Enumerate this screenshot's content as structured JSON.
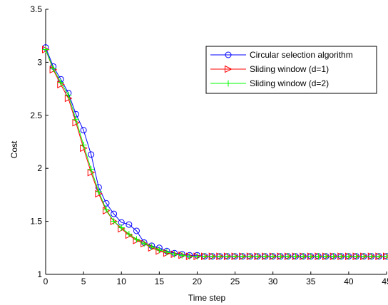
{
  "chart_data": {
    "type": "line",
    "xlabel": "Time step",
    "ylabel": "Cost",
    "xlim": [
      0,
      45
    ],
    "ylim": [
      1,
      3.5
    ],
    "xticks": [
      0,
      5,
      10,
      15,
      20,
      25,
      30,
      35,
      40,
      45
    ],
    "yticks": [
      1,
      1.5,
      2,
      2.5,
      3,
      3.5
    ],
    "xtick_labels": [
      "0",
      "5",
      "10",
      "15",
      "20",
      "25",
      "30",
      "35",
      "40",
      "45"
    ],
    "ytick_labels": [
      "1",
      "1.5",
      "2",
      "2.5",
      "3",
      "3.5"
    ],
    "legend_position": "top-right",
    "grid": false,
    "x": [
      0,
      1,
      2,
      3,
      4,
      5,
      6,
      7,
      8,
      9,
      10,
      11,
      12,
      13,
      14,
      15,
      16,
      17,
      18,
      19,
      20,
      21,
      22,
      23,
      24,
      25,
      26,
      27,
      28,
      29,
      30,
      31,
      32,
      33,
      34,
      35,
      36,
      37,
      38,
      39,
      40,
      41,
      42,
      43,
      44,
      45
    ],
    "series": [
      {
        "name": "Circular selection algorithm",
        "color": "#0000ff",
        "marker": "circle",
        "values": [
          3.14,
          2.96,
          2.84,
          2.71,
          2.51,
          2.36,
          2.13,
          1.82,
          1.67,
          1.57,
          1.49,
          1.47,
          1.41,
          1.3,
          1.27,
          1.25,
          1.22,
          1.2,
          1.19,
          1.18,
          1.18,
          1.17,
          1.17,
          1.17,
          1.17,
          1.17,
          1.17,
          1.17,
          1.17,
          1.17,
          1.17,
          1.17,
          1.17,
          1.17,
          1.17,
          1.17,
          1.17,
          1.17,
          1.17,
          1.17,
          1.17,
          1.17,
          1.17,
          1.17,
          1.17,
          1.17
        ]
      },
      {
        "name": "Sliding window (d=1)",
        "color": "#ff0000",
        "marker": "triangle-right",
        "values": [
          3.12,
          2.93,
          2.79,
          2.66,
          2.43,
          2.19,
          1.96,
          1.76,
          1.6,
          1.5,
          1.43,
          1.37,
          1.32,
          1.29,
          1.25,
          1.22,
          1.2,
          1.19,
          1.18,
          1.17,
          1.17,
          1.17,
          1.17,
          1.17,
          1.17,
          1.17,
          1.17,
          1.17,
          1.17,
          1.17,
          1.17,
          1.17,
          1.17,
          1.17,
          1.17,
          1.17,
          1.17,
          1.17,
          1.17,
          1.17,
          1.17,
          1.17,
          1.17,
          1.17,
          1.17,
          1.17
        ]
      },
      {
        "name": "Sliding window (d=2)",
        "color": "#00ff00",
        "marker": "plus",
        "values": [
          3.12,
          2.94,
          2.81,
          2.69,
          2.46,
          2.22,
          1.99,
          1.78,
          1.61,
          1.5,
          1.44,
          1.38,
          1.33,
          1.29,
          1.26,
          1.23,
          1.21,
          1.19,
          1.18,
          1.17,
          1.17,
          1.17,
          1.17,
          1.17,
          1.17,
          1.17,
          1.17,
          1.17,
          1.17,
          1.17,
          1.17,
          1.17,
          1.17,
          1.17,
          1.17,
          1.17,
          1.17,
          1.17,
          1.17,
          1.17,
          1.17,
          1.17,
          1.17,
          1.17,
          1.17,
          1.17
        ]
      }
    ]
  }
}
